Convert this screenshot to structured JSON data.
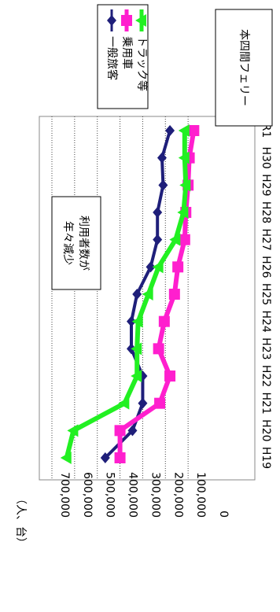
{
  "chart_data": {
    "type": "line",
    "title": "本四間フェリー",
    "ylabel": "（人、台）",
    "xlabel": "",
    "categories": [
      "H19",
      "H20",
      "H21",
      "H22",
      "H23",
      "H24",
      "H25",
      "H26",
      "H27",
      "H28",
      "H29",
      "H30",
      "R1"
    ],
    "ylim": [
      0,
      700000
    ],
    "yticks": [
      "0",
      "100,000",
      "200,000",
      "300,000",
      "400,000",
      "500,000",
      "600,000",
      "700,000"
    ],
    "grid": true,
    "legend_position": "top-right",
    "annotation": [
      "利用者数が",
      "年々減少"
    ],
    "series": [
      {
        "name": "一般旅客",
        "color": "#1f1f7a",
        "marker": "diamond",
        "values": [
          465000,
          345000,
          300000,
          300000,
          350000,
          350000,
          325000,
          265000,
          235000,
          235000,
          210000,
          215000,
          180000
        ]
      },
      {
        "name": "乗用車",
        "color": "#ff1fce",
        "marker": "square",
        "values": [
          400000,
          400000,
          225000,
          180000,
          230000,
          205000,
          160000,
          145000,
          115000,
          110000,
          100000,
          95000,
          75000
        ]
      },
      {
        "name": "トラック等",
        "color": "#22f022",
        "marker": "triangle",
        "values": [
          635000,
          605000,
          380000,
          325000,
          325000,
          320000,
          275000,
          230000,
          155000,
          120000,
          110000,
          115000,
          115000
        ]
      }
    ]
  }
}
